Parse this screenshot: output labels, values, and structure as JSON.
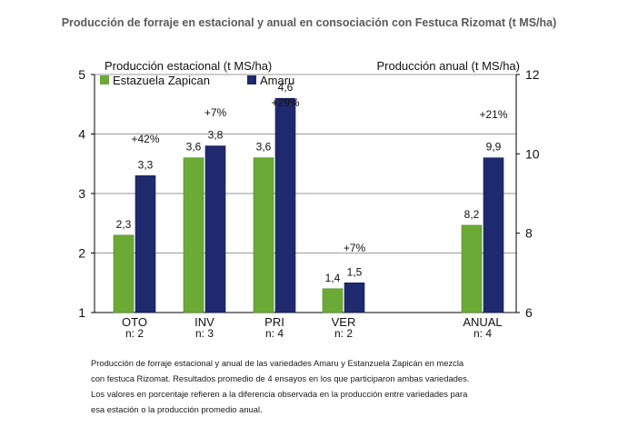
{
  "title": "Producción de forraje en estacional y anual en consociación con Festuca Rizomat (t MS/ha)",
  "caption": [
    "Producción de forraje estacional y anual de las variedades Amaru y Estanzuela Zapicán  en mezcla",
    "con festuca Rizomat. Resultados promedio de 4 ensayos en los que participaron ambas variedades.",
    "Los valores en porcentaje refieren a la diferencia observada en la producción entre variedades para",
    "esa estación o la producción promedio anual."
  ],
  "chart_data": {
    "type": "bar",
    "ylabel_left": "Producción estacional (t MS/ha)",
    "ylabel_right": "Producción anual (t MS/ha)",
    "ylim_left": [
      1,
      5
    ],
    "yticks_left": [
      1,
      2,
      3,
      4,
      5
    ],
    "ylim_right": [
      6,
      12
    ],
    "yticks_right": [
      6,
      8,
      10,
      12
    ],
    "legend_placement": "top-left",
    "categories": [
      "OTO",
      "INV",
      "PRI",
      "VER",
      "ANUAL"
    ],
    "n_labels": [
      "n: 2",
      "n: 3",
      "n: 4",
      "n: 2",
      "n: 4"
    ],
    "axis": [
      "left",
      "left",
      "left",
      "left",
      "right"
    ],
    "series": [
      {
        "name": "Estazuela Zapican",
        "color": "#6aaa35",
        "values": [
          2.3,
          3.6,
          3.6,
          1.4,
          8.2
        ],
        "labels": [
          "2,3",
          "3,6",
          "3,6",
          "1,4",
          "8,2"
        ]
      },
      {
        "name": "Amaru",
        "color": "#1f2a6e",
        "values": [
          3.3,
          3.8,
          4.6,
          1.5,
          9.9
        ],
        "labels": [
          "3,3",
          "3,8",
          "4,6",
          "1,5",
          "9,9"
        ]
      }
    ],
    "differences": [
      "+42%",
      "+7%",
      "+29%",
      "+7%",
      "+21%"
    ]
  }
}
